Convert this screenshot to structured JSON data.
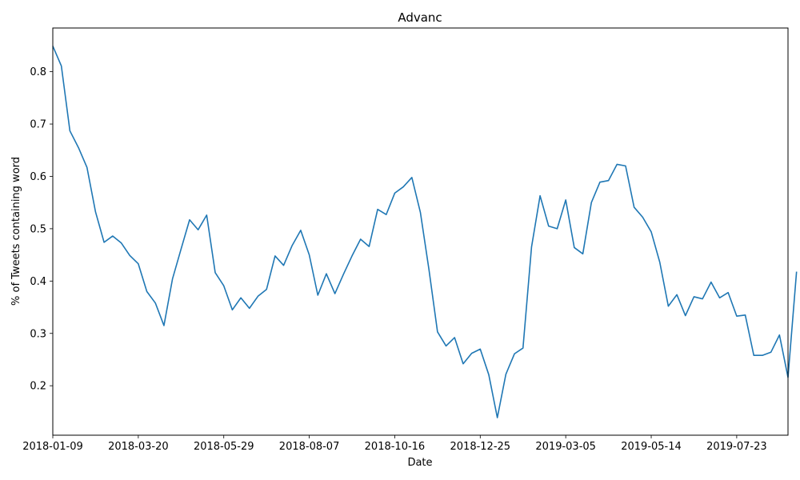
{
  "chart_data": {
    "type": "line",
    "title": "Advanc",
    "xlabel": "Date",
    "ylabel": "% of Tweets containing word",
    "x_start": "2018-01-09",
    "x_step_days": 7,
    "xlim": [
      "2018-01-09",
      "2019-09-03"
    ],
    "ylim": [
      0.1055,
      0.8835
    ],
    "x_ticks": [
      "2018-01-09",
      "2018-03-20",
      "2018-05-29",
      "2018-08-07",
      "2018-10-16",
      "2018-12-25",
      "2019-03-05",
      "2019-05-14",
      "2019-07-23"
    ],
    "y_ticks": [
      0.2,
      0.3,
      0.4,
      0.5,
      0.6,
      0.7,
      0.8
    ],
    "y_tick_labels": [
      "0.2",
      "0.3",
      "0.4",
      "0.5",
      "0.6",
      "0.7",
      "0.8"
    ],
    "series": [
      {
        "name": "",
        "color": "#1f77b4",
        "values": [
          0.849,
          0.811,
          0.687,
          0.655,
          0.617,
          0.532,
          0.474,
          0.486,
          0.473,
          0.449,
          0.433,
          0.38,
          0.358,
          0.315,
          0.404,
          0.461,
          0.517,
          0.498,
          0.526,
          0.416,
          0.391,
          0.345,
          0.368,
          0.348,
          0.371,
          0.384,
          0.448,
          0.43,
          0.468,
          0.497,
          0.45,
          0.373,
          0.414,
          0.376,
          0.413,
          0.448,
          0.48,
          0.466,
          0.537,
          0.527,
          0.568,
          0.58,
          0.598,
          0.531,
          0.422,
          0.303,
          0.276,
          0.292,
          0.242,
          0.262,
          0.27,
          0.221,
          0.139,
          0.222,
          0.261,
          0.272,
          0.465,
          0.563,
          0.505,
          0.5,
          0.555,
          0.464,
          0.452,
          0.55,
          0.589,
          0.592,
          0.623,
          0.62,
          0.541,
          0.522,
          0.494,
          0.436,
          0.352,
          0.374,
          0.334,
          0.37,
          0.366,
          0.398,
          0.368,
          0.378,
          0.333,
          0.335,
          0.258,
          0.258,
          0.264,
          0.297,
          0.216,
          0.418
        ]
      }
    ],
    "grid": false,
    "legend": "none"
  }
}
